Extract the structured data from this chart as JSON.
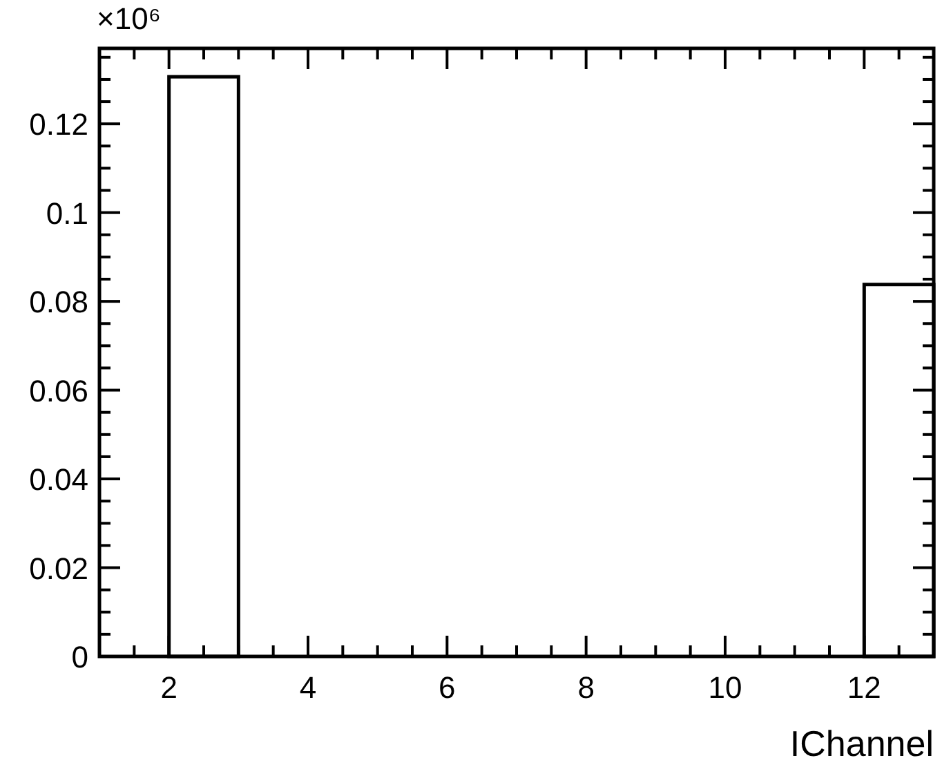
{
  "chart_data": {
    "type": "histogram",
    "xlabel": "IChannel",
    "annotations": [
      "×10⁶"
    ],
    "color": "#000000",
    "bins": [
      1,
      2,
      3,
      4,
      5,
      6,
      7,
      8,
      9,
      10,
      11,
      12,
      13
    ],
    "values": [
      0,
      0.1306,
      0,
      0,
      0,
      0,
      0,
      0,
      0,
      0,
      0,
      0.0838
    ],
    "xlim": [
      1,
      13
    ],
    "ylim": [
      0,
      0.137
    ],
    "xticks": [
      {
        "value": 1.5,
        "label": null
      },
      2,
      {
        "value": 2.5,
        "label": null
      },
      {
        "value": 3,
        "label": null
      },
      {
        "value": 3.5,
        "label": null
      },
      4,
      {
        "value": 4.5,
        "label": null
      },
      {
        "value": 5,
        "label": null
      },
      {
        "value": 5.5,
        "label": null
      },
      6,
      {
        "value": 6.5,
        "label": null
      },
      {
        "value": 7,
        "label": null
      },
      {
        "value": 7.5,
        "label": null
      },
      8,
      {
        "value": 8.5,
        "label": null
      },
      {
        "value": 9,
        "label": null
      },
      {
        "value": 9.5,
        "label": null
      },
      10,
      {
        "value": 10.5,
        "label": null
      },
      {
        "value": 11,
        "label": null
      },
      {
        "value": 11.5,
        "label": null
      },
      12,
      {
        "value": 12.5,
        "label": null
      }
    ],
    "yticks": [
      0,
      {
        "value": 0.005,
        "label": null
      },
      {
        "value": 0.01,
        "label": null
      },
      {
        "value": 0.015,
        "label": null
      },
      0.02,
      {
        "value": 0.025,
        "label": null
      },
      {
        "value": 0.03,
        "label": null
      },
      {
        "value": 0.035,
        "label": null
      },
      0.04,
      {
        "value": 0.045,
        "label": null
      },
      {
        "value": 0.05,
        "label": null
      },
      {
        "value": 0.055,
        "label": null
      },
      0.06,
      {
        "value": 0.065,
        "label": null
      },
      {
        "value": 0.07,
        "label": null
      },
      {
        "value": 0.075,
        "label": null
      },
      0.08,
      {
        "value": 0.085,
        "label": null
      },
      {
        "value": 0.09,
        "label": null
      },
      {
        "value": 0.095,
        "label": null
      },
      0.1,
      {
        "value": 0.105,
        "label": null
      },
      {
        "value": 0.11,
        "label": null
      },
      {
        "value": 0.115,
        "label": null
      },
      0.12,
      {
        "value": 0.125,
        "label": null
      },
      {
        "value": 0.13,
        "label": null
      },
      {
        "value": 0.135,
        "label": null
      }
    ],
    "grid": false
  }
}
